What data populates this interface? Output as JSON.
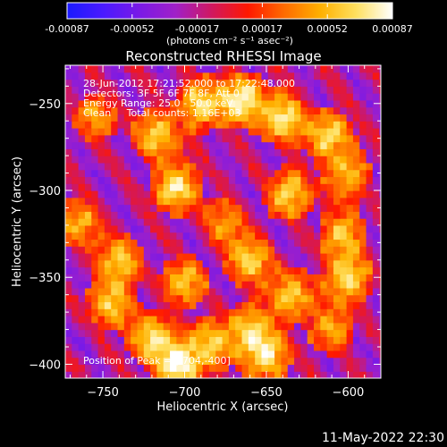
{
  "colorbar": {
    "tick_labels": [
      "-0.00087",
      "-0.00052",
      "-0.00017",
      "0.00017",
      "0.00052",
      "0.00087"
    ],
    "units": "(photons cm⁻² s⁻¹ asec⁻²)",
    "palette": [
      "#1a1aff",
      "#4a1aff",
      "#7a1ae6",
      "#a020c8",
      "#d01860",
      "#ff1800",
      "#ff6a00",
      "#ffb000",
      "#ffe060",
      "#ffffff"
    ]
  },
  "chart_data": {
    "type": "heatmap",
    "title": "Reconstructed RHESSI Image",
    "xlabel": "Heliocentric X (arcsec)",
    "ylabel": "Heliocentric Y (arcsec)",
    "xlim": [
      -773,
      -580
    ],
    "ylim": [
      -408,
      -228
    ],
    "xticks": [
      -750,
      -700,
      -650,
      -600
    ],
    "yticks": [
      -250,
      -300,
      -350,
      -400
    ],
    "grid": false,
    "peak_position": [
      -704,
      -400
    ],
    "sources": [
      {
        "x": -665,
        "y": -248,
        "value": 0.95
      },
      {
        "x": -640,
        "y": -258,
        "value": 0.85
      },
      {
        "x": -690,
        "y": -250,
        "value": 0.8
      },
      {
        "x": -612,
        "y": -268,
        "value": 0.75
      },
      {
        "x": -718,
        "y": -268,
        "value": 0.72
      },
      {
        "x": -705,
        "y": -298,
        "value": 0.85
      },
      {
        "x": -600,
        "y": -290,
        "value": 0.6
      },
      {
        "x": -636,
        "y": -302,
        "value": 0.75
      },
      {
        "x": -755,
        "y": -258,
        "value": 0.5
      },
      {
        "x": -740,
        "y": -340,
        "value": 0.7
      },
      {
        "x": -765,
        "y": -318,
        "value": 0.6
      },
      {
        "x": -660,
        "y": -340,
        "value": 0.75
      },
      {
        "x": -700,
        "y": -352,
        "value": 0.65
      },
      {
        "x": -635,
        "y": -360,
        "value": 0.7
      },
      {
        "x": -600,
        "y": -350,
        "value": 0.8
      },
      {
        "x": -603,
        "y": -325,
        "value": 0.65
      },
      {
        "x": -745,
        "y": -365,
        "value": 0.7
      },
      {
        "x": -720,
        "y": -385,
        "value": 0.8
      },
      {
        "x": -704,
        "y": -400,
        "value": 1.0
      },
      {
        "x": -684,
        "y": -388,
        "value": 0.7
      },
      {
        "x": -660,
        "y": -380,
        "value": 0.75
      },
      {
        "x": -650,
        "y": -395,
        "value": 0.8
      },
      {
        "x": -610,
        "y": -380,
        "value": 0.55
      },
      {
        "x": -675,
        "y": -318,
        "value": 0.5
      }
    ],
    "annotations": [
      "28-Jun-2012 17:21:52.000 to 17:22:48.000",
      "Detectors: 3F 5F 6F 7F 8F, Att 0",
      "Energy Range: 25.0 - 50.0 keV",
      "Clean     Total counts: 1.16E+03"
    ],
    "peak_label": "Position of Peak = [-704,-400]"
  },
  "footer_date": "11-May-2022 22:30"
}
